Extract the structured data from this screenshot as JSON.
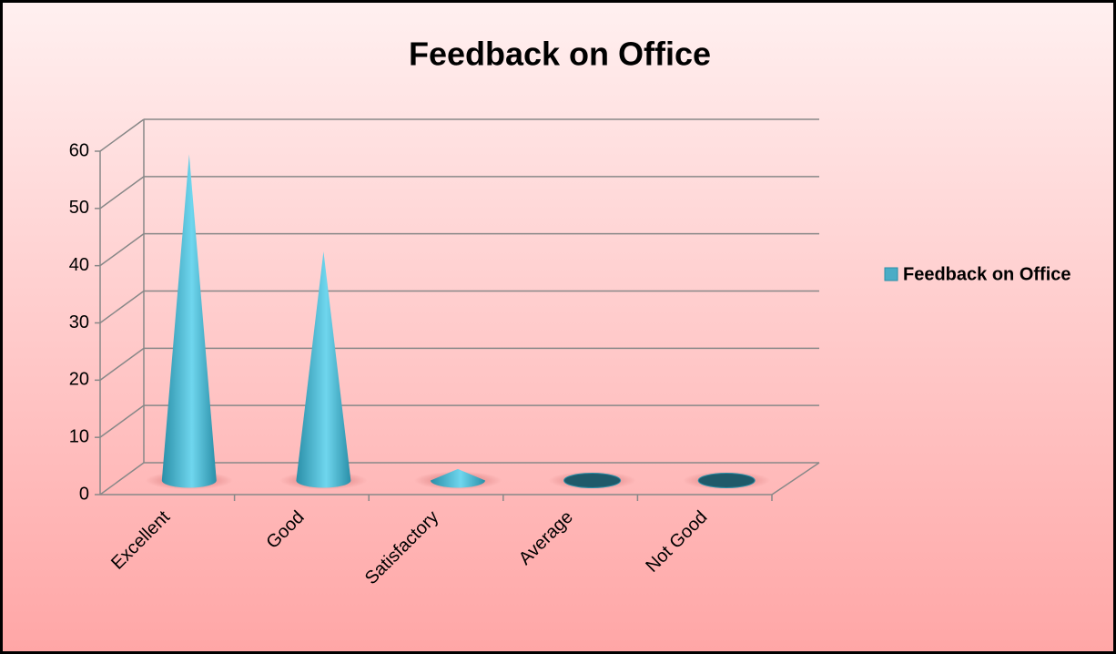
{
  "chart_data": {
    "type": "cone",
    "title": "Feedback on Office",
    "categories": [
      "Excellent",
      "Good",
      "Satisfactory",
      "Average",
      "Not Good"
    ],
    "series": [
      {
        "name": "Feedback on Office",
        "color": "#4bacc6",
        "values": [
          57,
          40,
          2,
          0,
          0
        ]
      }
    ],
    "ylim": [
      0,
      60
    ],
    "yticks": [
      0,
      10,
      20,
      30,
      40,
      50,
      60
    ],
    "grid": true,
    "legend": "right"
  }
}
